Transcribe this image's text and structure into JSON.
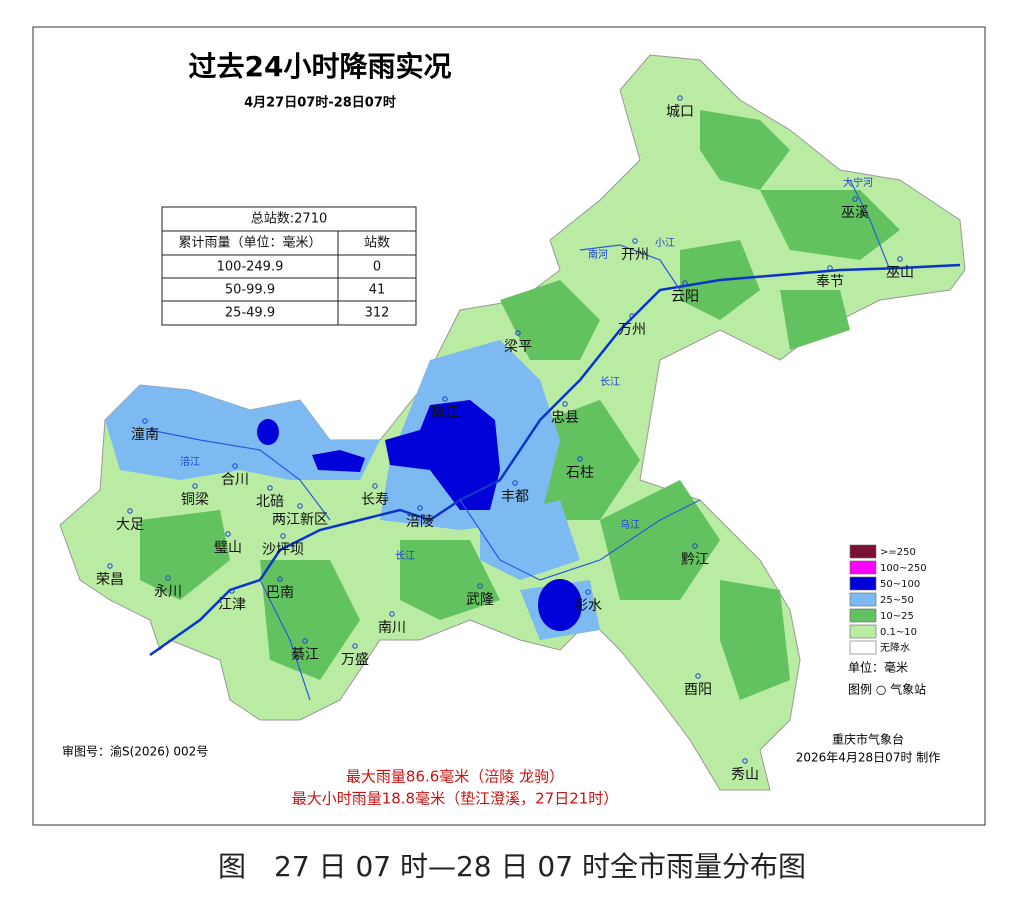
{
  "header": {
    "title": "过去24小时降雨实况",
    "subtitle": "4月27日07时-28日07时"
  },
  "table": {
    "total": "总站数:2710",
    "headers": [
      "累计雨量（单位：毫米）",
      "站数"
    ],
    "rows": [
      [
        "100-249.9",
        "0"
      ],
      [
        "50-99.9",
        "41"
      ],
      [
        "25-49.9",
        "312"
      ]
    ]
  },
  "places": [
    "城口",
    "巫溪",
    "开州",
    "云阳",
    "奉节",
    "巫山",
    "万州",
    "梁平",
    "垫江",
    "忠县",
    "石柱",
    "丰都",
    "涪陵",
    "长寿",
    "两江新区",
    "北碚",
    "合川",
    "潼南",
    "铜梁",
    "大足",
    "荣昌",
    "永川",
    "璧山",
    "沙坪坝",
    "江津",
    "巴南",
    "綦江",
    "万盛",
    "南川",
    "武隆",
    "彭水",
    "黔江",
    "酉阳",
    "秀山"
  ],
  "rivers": [
    "大宁河",
    "南河",
    "小江",
    "长江",
    "涪江",
    "乌江",
    "长江"
  ],
  "legend": {
    "items": [
      {
        "label": ">=250",
        "color": "#7b1030"
      },
      {
        "label": "100~250",
        "color": "#ff00ff"
      },
      {
        "label": "50~100",
        "color": "#0000d8"
      },
      {
        "label": "25~50",
        "color": "#7dbaf2"
      },
      {
        "label": "10~25",
        "color": "#62c25f"
      },
      {
        "label": "0.1~10",
        "color": "#b9eba2"
      },
      {
        "label": "无降水",
        "color": "#ffffff"
      }
    ],
    "unit": "单位：毫米",
    "station": "图例 ○ 气象站"
  },
  "footer": {
    "approval": "审图号：渝S(2026) 002号",
    "issuer": "重庆市气象台",
    "issued": "2026年4月28日07时 制作",
    "max_rain": "最大雨量86.6毫米（涪陵 龙驹）",
    "max_hourly": "最大小时雨量18.8毫米（垫江澄溪，27日21时）"
  },
  "caption": "图　27 日 07 时—28 日 07 时全市雨量分布图"
}
